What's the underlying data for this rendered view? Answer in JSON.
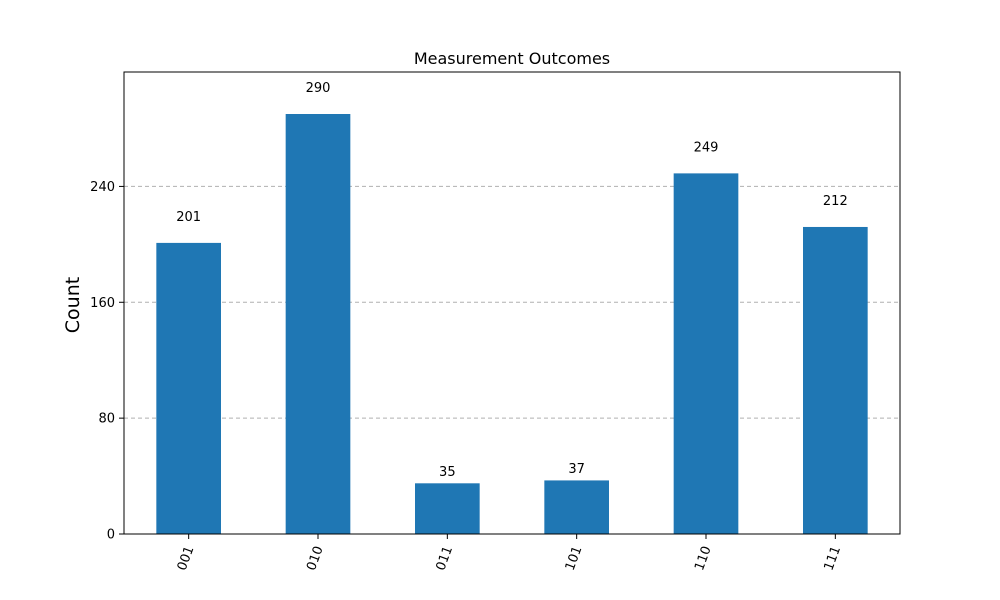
{
  "chart_data": {
    "type": "bar",
    "title": "Measurement Outcomes",
    "xlabel": "",
    "ylabel": "Count",
    "categories": [
      "001",
      "010",
      "011",
      "101",
      "110",
      "111"
    ],
    "values": [
      201,
      290,
      35,
      37,
      249,
      212
    ],
    "data_labels": [
      "201",
      "290",
      "35",
      "37",
      "249",
      "212"
    ],
    "yticks": [
      0,
      80,
      160,
      240
    ],
    "ytick_labels": [
      "0",
      "80",
      "160",
      "240"
    ],
    "ylim": [
      0,
      319
    ],
    "grid": "y-dashed",
    "bar_color": "#1f77b4",
    "grid_color": "#b0b0b0"
  }
}
